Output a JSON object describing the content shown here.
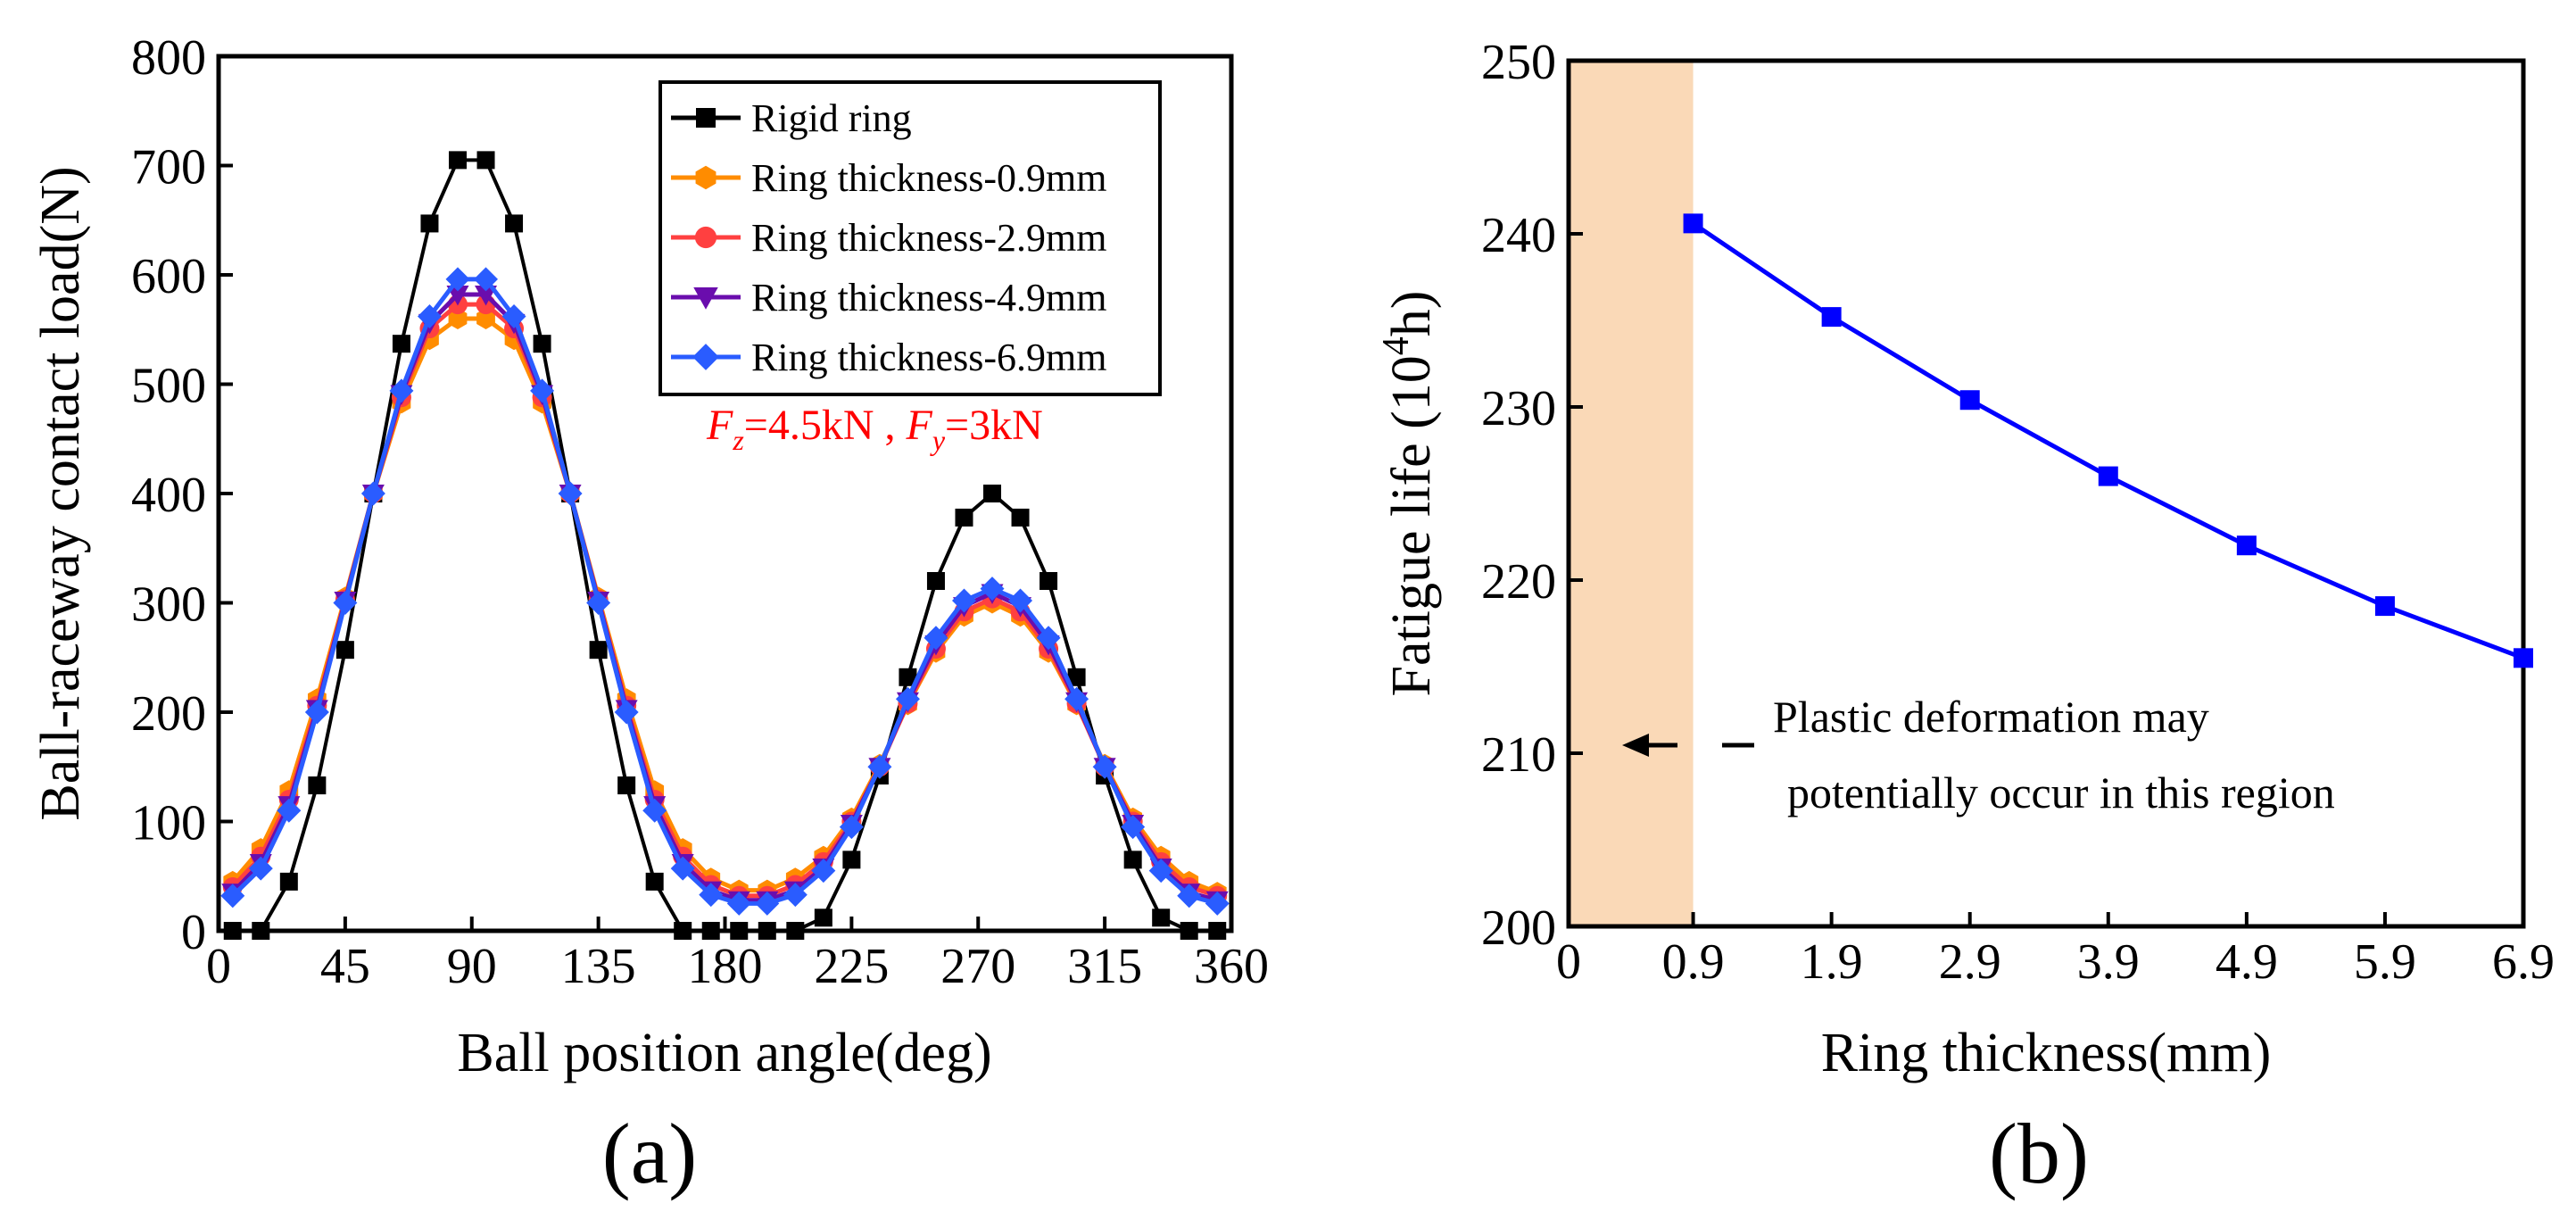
{
  "chart_data": [
    {
      "panel": "(a)",
      "type": "line",
      "xlabel": "Ball position angle(deg)",
      "ylabel": "Ball-raceway contact load(N)",
      "xlim": [
        0,
        360
      ],
      "ylim": [
        0,
        800
      ],
      "xticks": [
        0,
        45,
        90,
        135,
        180,
        225,
        270,
        315,
        360
      ],
      "yticks": [
        0,
        100,
        200,
        300,
        400,
        500,
        600,
        700,
        800
      ],
      "condition": {
        "fz_symbol": "F",
        "fz_sub": "z",
        "fz_value": "=4.5kN",
        "sep": " , ",
        "fy_symbol": "F",
        "fy_sub": "y",
        "fy_value": "=3kN"
      },
      "legend_position": "top-right",
      "series": [
        {
          "name": "Rigid ring",
          "color": "#000000",
          "marker": "square",
          "x": [
            5,
            15,
            25,
            35,
            45,
            55,
            65,
            75,
            85,
            95,
            105,
            115,
            125,
            135,
            145,
            155,
            165,
            175,
            185,
            195,
            205,
            215,
            225,
            235,
            245,
            255,
            265,
            275,
            285,
            295,
            305,
            315,
            325,
            335,
            345,
            355
          ],
          "y": [
            0,
            0,
            45,
            133,
            257,
            400,
            537,
            647,
            705,
            705,
            647,
            537,
            400,
            257,
            133,
            45,
            0,
            0,
            0,
            0,
            0,
            12,
            65,
            142,
            232,
            320,
            378,
            400,
            378,
            320,
            232,
            142,
            65,
            12,
            0,
            0
          ]
        },
        {
          "name": "Ring thickness-0.9mm",
          "color": "#ff8c00",
          "marker": "hexagon",
          "x": [
            5,
            15,
            25,
            35,
            45,
            55,
            65,
            75,
            85,
            95,
            105,
            115,
            125,
            135,
            145,
            155,
            165,
            175,
            185,
            195,
            205,
            215,
            225,
            235,
            245,
            255,
            265,
            275,
            285,
            295,
            305,
            315,
            325,
            335,
            345,
            355
          ],
          "y": [
            45,
            75,
            128,
            212,
            305,
            400,
            483,
            541,
            560,
            560,
            541,
            483,
            400,
            305,
            212,
            128,
            75,
            48,
            37,
            37,
            48,
            68,
            103,
            152,
            207,
            255,
            288,
            300,
            288,
            255,
            207,
            152,
            103,
            68,
            45,
            35
          ]
        },
        {
          "name": "Ring thickness-2.9mm",
          "color": "#ff4040",
          "marker": "circle",
          "x": [
            5,
            15,
            25,
            35,
            45,
            55,
            65,
            75,
            85,
            95,
            105,
            115,
            125,
            135,
            145,
            155,
            165,
            175,
            185,
            195,
            205,
            215,
            225,
            235,
            245,
            255,
            265,
            275,
            285,
            295,
            305,
            315,
            325,
            335,
            345,
            355
          ],
          "y": [
            40,
            68,
            120,
            206,
            303,
            400,
            488,
            551,
            573,
            573,
            551,
            488,
            400,
            303,
            206,
            120,
            68,
            42,
            32,
            32,
            42,
            63,
            100,
            150,
            208,
            258,
            292,
            304,
            292,
            258,
            208,
            150,
            100,
            63,
            40,
            32
          ]
        },
        {
          "name": "Ring thickness-4.9mm",
          "color": "#6a0dad",
          "marker": "triangle-down",
          "x": [
            5,
            15,
            25,
            35,
            45,
            55,
            65,
            75,
            85,
            95,
            105,
            115,
            125,
            135,
            145,
            155,
            165,
            175,
            185,
            195,
            205,
            215,
            225,
            235,
            245,
            255,
            265,
            275,
            285,
            295,
            305,
            315,
            325,
            335,
            345,
            355
          ],
          "y": [
            35,
            62,
            115,
            203,
            302,
            400,
            491,
            556,
            582,
            582,
            556,
            491,
            400,
            302,
            203,
            115,
            62,
            37,
            28,
            28,
            37,
            58,
            98,
            150,
            210,
            262,
            297,
            309,
            297,
            262,
            210,
            150,
            98,
            58,
            35,
            28
          ]
        },
        {
          "name": "Ring thickness-6.9mm",
          "color": "#2a5cff",
          "marker": "diamond",
          "x": [
            5,
            15,
            25,
            35,
            45,
            55,
            65,
            75,
            85,
            95,
            105,
            115,
            125,
            135,
            145,
            155,
            165,
            175,
            185,
            195,
            205,
            215,
            225,
            235,
            245,
            255,
            265,
            275,
            285,
            295,
            305,
            315,
            325,
            335,
            345,
            355
          ],
          "y": [
            32,
            57,
            110,
            200,
            300,
            400,
            494,
            562,
            596,
            596,
            562,
            494,
            400,
            300,
            200,
            110,
            57,
            33,
            25,
            25,
            33,
            55,
            95,
            150,
            212,
            268,
            302,
            313,
            302,
            268,
            212,
            150,
            95,
            55,
            32,
            25
          ]
        }
      ]
    },
    {
      "panel": "(b)",
      "type": "line",
      "xlabel": "Ring thickness(mm)",
      "ylabel_main": "Fatigue life (10",
      "ylabel_sup": "4",
      "ylabel_tail": "h)",
      "xlim": [
        0,
        6.9
      ],
      "ylim": [
        200,
        250
      ],
      "xticks": [
        0,
        0.9,
        1.9,
        2.9,
        3.9,
        4.9,
        5.9,
        6.9
      ],
      "xtick_labels": [
        "0",
        "0.9",
        "1.9",
        "2.9",
        "3.9",
        "4.9",
        "5.9",
        "6.9"
      ],
      "yticks": [
        200,
        210,
        220,
        230,
        240,
        250
      ],
      "shaded_region": {
        "x_from": 0,
        "x_to": 0.9,
        "color": "#fad9b7"
      },
      "annotation": {
        "line1": "Plastic deformation may",
        "line2": "potentially occur in this region"
      },
      "series": [
        {
          "name": "Fatigue life",
          "color": "#0000ff",
          "marker": "square",
          "x": [
            0.9,
            1.9,
            2.9,
            3.9,
            4.9,
            5.9,
            6.9
          ],
          "y": [
            240.6,
            235.2,
            230.4,
            226.0,
            222.0,
            218.5,
            215.5
          ]
        }
      ]
    }
  ]
}
